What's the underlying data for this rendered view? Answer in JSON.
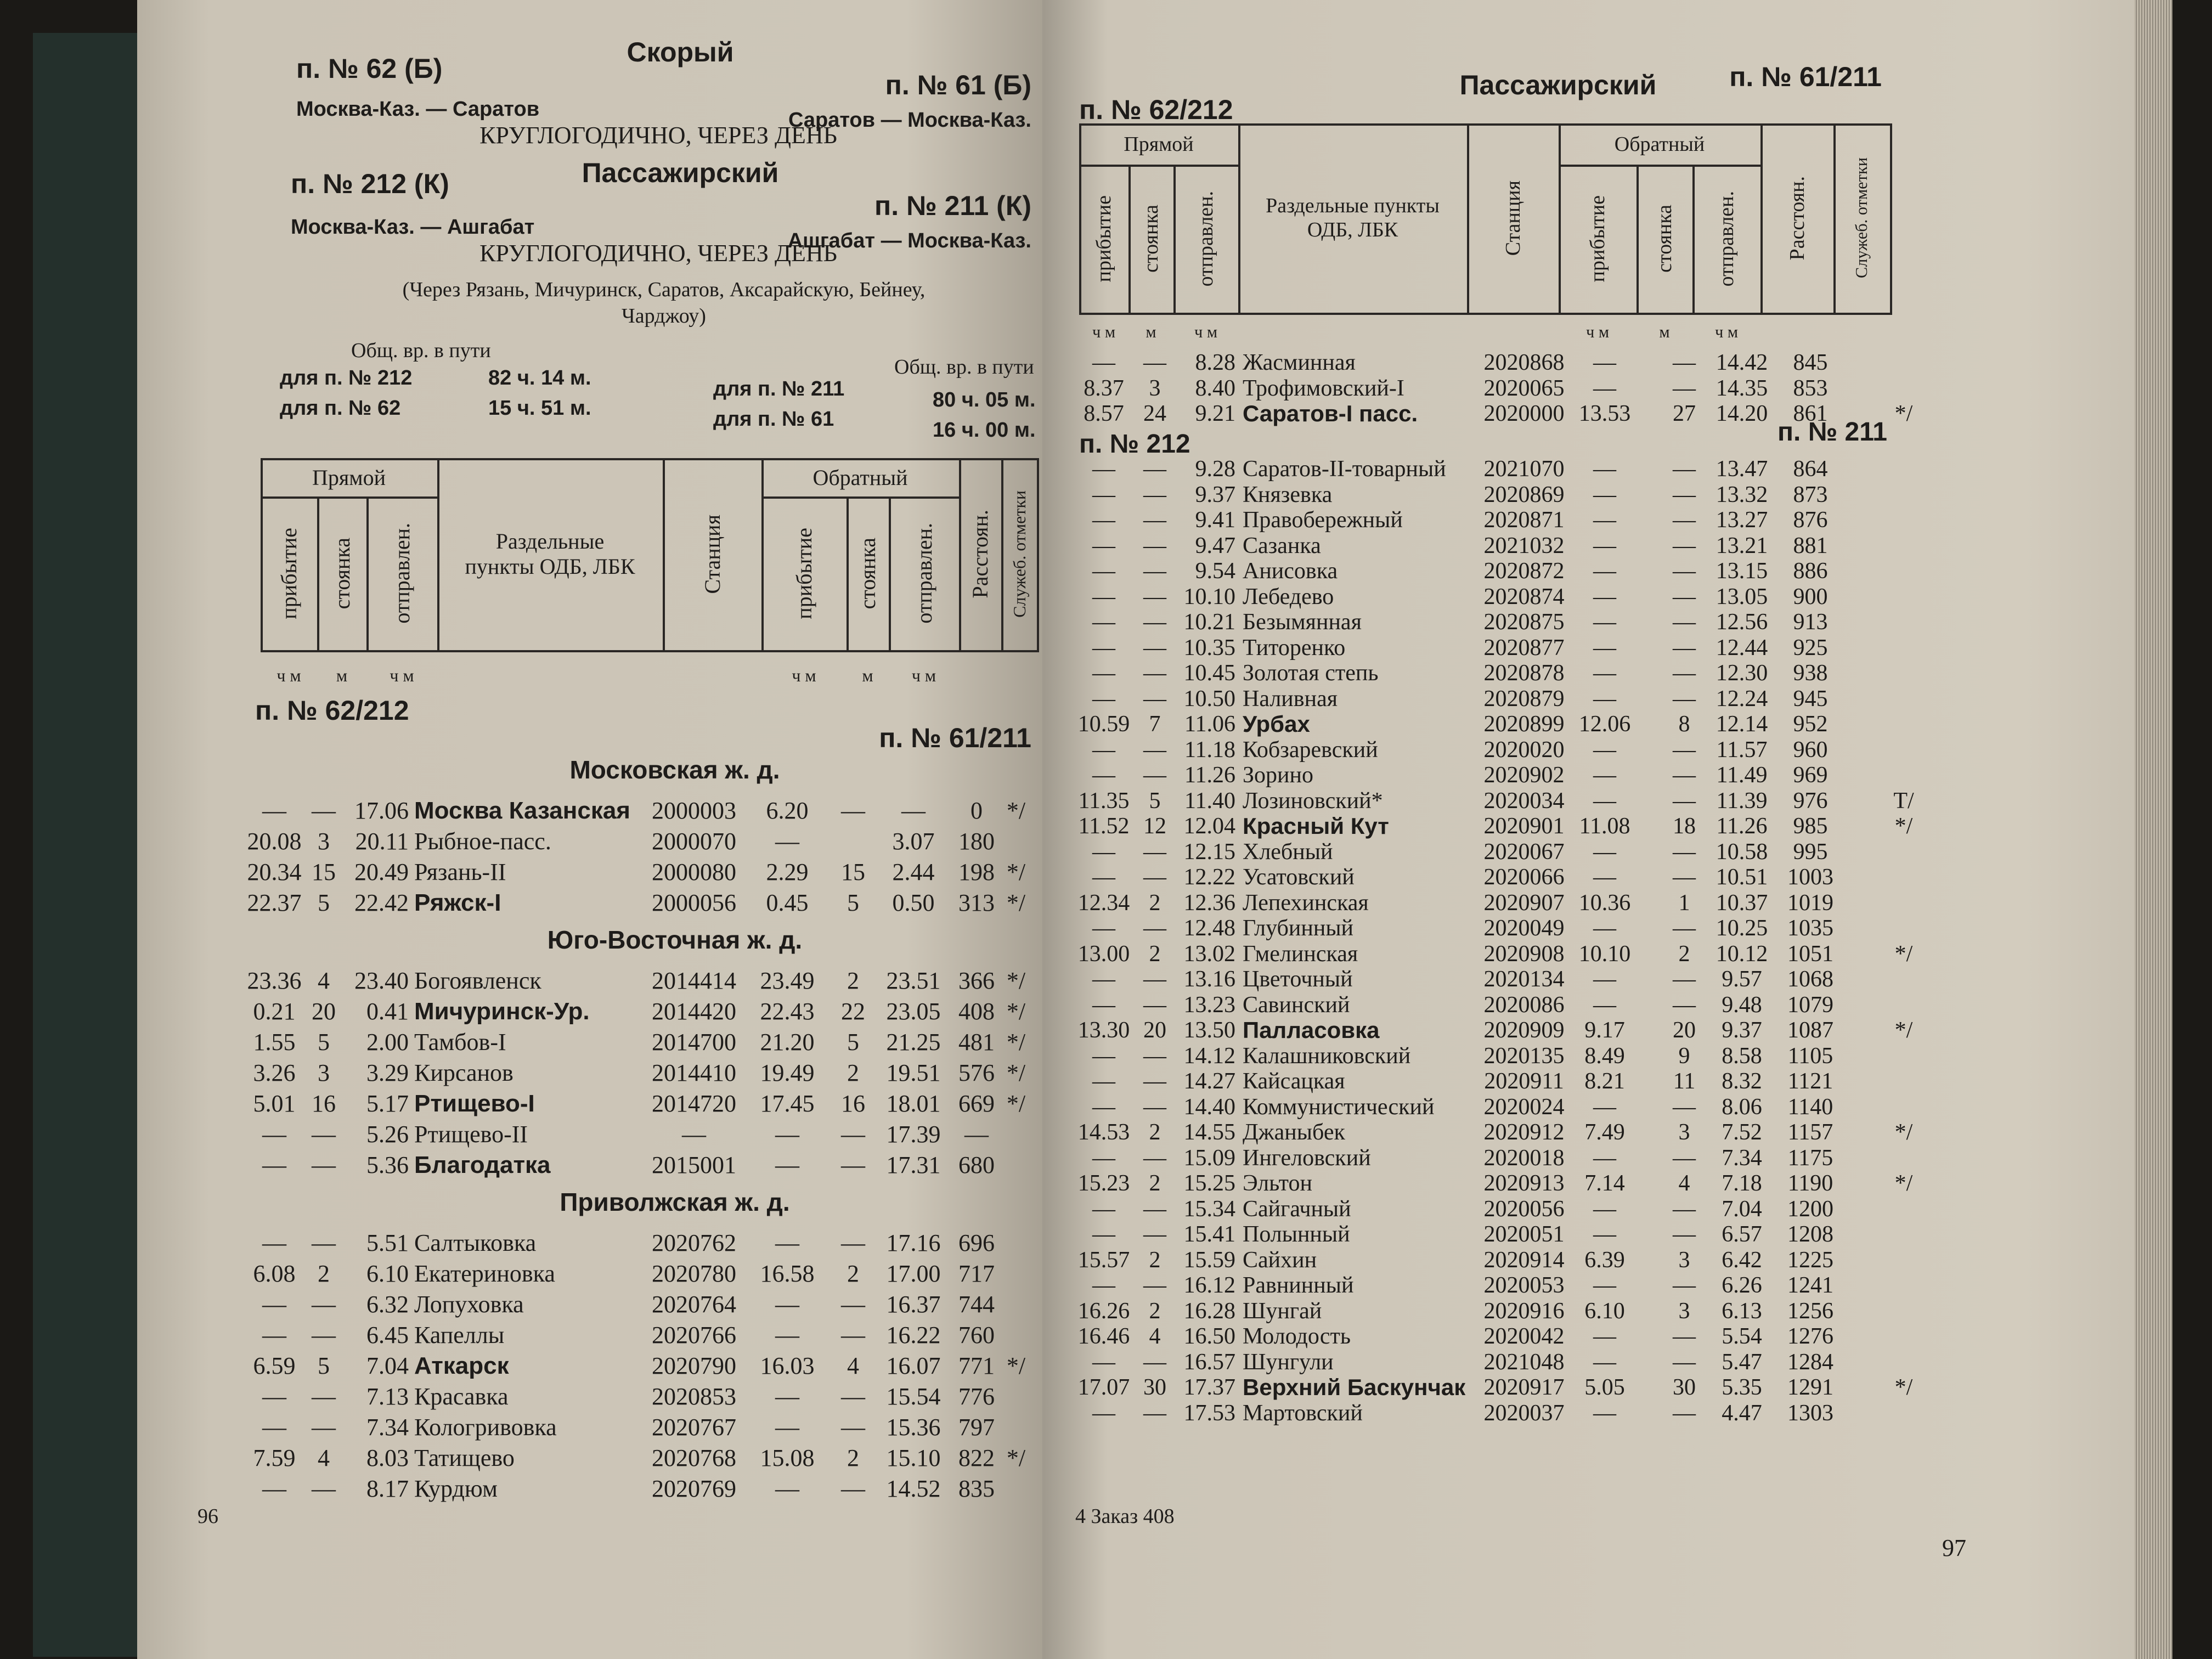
{
  "table_header": {
    "direct": "Прямой",
    "reverse": "Обратный",
    "arrival": "прибытие",
    "stop": "стоянка",
    "departure": "отправлен.",
    "points": "Раздельные пункты ОДБ, ЛБК",
    "station": "Станция",
    "distance": "Расстоян.",
    "service_notes": "Служеб. отметки",
    "unit_hm": "ч м",
    "unit_m": "м"
  },
  "left_page": {
    "header": {
      "train_fast_there": "п. № 62 (Б)",
      "category_fast": "Скорый",
      "train_fast_back": "п. № 61 (Б)",
      "route_fast_there": "Москва-Каз. — Саратов",
      "route_fast_back": "Саратов — Москва-Каз.",
      "schedule_fast": "КРУГЛОГОДИЧНО, ЧЕРЕЗ ДЕНЬ",
      "train_pass_there": "п. № 212 (К)",
      "category_pass": "Пассажирский",
      "train_pass_back": "п. № 211 (К)",
      "route_pass_there": "Москва-Каз. — Ашгабат",
      "route_pass_back": "Ашгабат — Москва-Каз.",
      "schedule_pass": "КРУГЛОГОДИЧНО, ЧЕРЕЗ ДЕНЬ",
      "via": "(Через Рязань, Мичуринск, Саратов, Аксарайскую, Бейнеу, Чарджоу)",
      "total_time_left": {
        "label": "Общ. вр. в пути",
        "rows": [
          [
            "для п. № 212",
            "82 ч. 14 м."
          ],
          [
            "для п. № 62",
            "15 ч. 51 м."
          ]
        ]
      },
      "total_time_right": {
        "label": "Общ. вр. в пути",
        "rows": [
          [
            "для п. № 211",
            "80 ч. 05 м."
          ],
          [
            "для п. № 61",
            "16 ч. 00 м."
          ]
        ]
      }
    },
    "route_left": "п. № 62/212",
    "route_right": "п. № 61/211",
    "sections": [
      {
        "title": "Московская ж. д.",
        "rows": [
          {
            "arr": "—",
            "stop": "—",
            "dep": "17.06",
            "station": "Москва Казанская",
            "bold": true,
            "code": "2000003",
            "rarr": "6.20",
            "rstop": "—",
            "rdep": "—",
            "dist": "0",
            "note": "*/"
          },
          {
            "arr": "20.08",
            "stop": "3",
            "dep": "20.11",
            "station": "Рыбное-пасс.",
            "code": "2000070",
            "rarr": "—",
            "rdep": "3.07",
            "dist": "180"
          },
          {
            "arr": "20.34",
            "stop": "15",
            "dep": "20.49",
            "station": "Рязань-II",
            "code": "2000080",
            "rarr": "2.29",
            "rstop": "15",
            "rdep": "2.44",
            "dist": "198",
            "note": "*/"
          },
          {
            "arr": "22.37",
            "stop": "5",
            "dep": "22.42",
            "station": "Ряжск-I",
            "bold": true,
            "code": "2000056",
            "rarr": "0.45",
            "rstop": "5",
            "rdep": "0.50",
            "dist": "313",
            "note": "*/"
          }
        ]
      },
      {
        "title": "Юго-Восточная ж. д.",
        "rows": [
          {
            "arr": "23.36",
            "stop": "4",
            "dep": "23.40",
            "station": "Богоявленск",
            "code": "2014414",
            "rarr": "23.49",
            "rstop": "2",
            "rdep": "23.51",
            "dist": "366",
            "note": "*/"
          },
          {
            "arr": "0.21",
            "stop": "20",
            "dep": "0.41",
            "station": "Мичуринск-Ур.",
            "bold": true,
            "code": "2014420",
            "rarr": "22.43",
            "rstop": "22",
            "rdep": "23.05",
            "dist": "408",
            "note": "*/"
          },
          {
            "arr": "1.55",
            "stop": "5",
            "dep": "2.00",
            "station": "Тамбов-I",
            "code": "2014700",
            "rarr": "21.20",
            "rstop": "5",
            "rdep": "21.25",
            "dist": "481",
            "note": "*/"
          },
          {
            "arr": "3.26",
            "stop": "3",
            "dep": "3.29",
            "station": "Кирсанов",
            "code": "2014410",
            "rarr": "19.49",
            "rstop": "2",
            "rdep": "19.51",
            "dist": "576",
            "note": "*/"
          },
          {
            "arr": "5.01",
            "stop": "16",
            "dep": "5.17",
            "station": "Ртищево-I",
            "bold": true,
            "code": "2014720",
            "rarr": "17.45",
            "rstop": "16",
            "rdep": "18.01",
            "dist": "669",
            "note": "*/"
          },
          {
            "arr": "—",
            "stop": "—",
            "dep": "5.26",
            "station": "Ртищево-II",
            "code": "—",
            "rarr": "—",
            "rstop": "—",
            "rdep": "17.39",
            "dist": "—"
          },
          {
            "arr": "—",
            "stop": "—",
            "dep": "5.36",
            "station": "Благодатка",
            "bold": true,
            "code": "2015001",
            "rarr": "—",
            "rstop": "—",
            "rdep": "17.31",
            "dist": "680"
          }
        ]
      },
      {
        "title": "Приволжская ж. д.",
        "rows": [
          {
            "arr": "—",
            "stop": "—",
            "dep": "5.51",
            "station": "Салтыковка",
            "code": "2020762",
            "rarr": "—",
            "rstop": "—",
            "rdep": "17.16",
            "dist": "696"
          },
          {
            "arr": "6.08",
            "stop": "2",
            "dep": "6.10",
            "station": "Екатериновка",
            "code": "2020780",
            "rarr": "16.58",
            "rstop": "2",
            "rdep": "17.00",
            "dist": "717"
          },
          {
            "arr": "—",
            "stop": "—",
            "dep": "6.32",
            "station": "Лопуховка",
            "code": "2020764",
            "rarr": "—",
            "rstop": "—",
            "rdep": "16.37",
            "dist": "744"
          },
          {
            "arr": "—",
            "stop": "—",
            "dep": "6.45",
            "station": "Капеллы",
            "code": "2020766",
            "rarr": "—",
            "rstop": "—",
            "rdep": "16.22",
            "dist": "760"
          },
          {
            "arr": "6.59",
            "stop": "5",
            "dep": "7.04",
            "station": "Аткарск",
            "bold": true,
            "code": "2020790",
            "rarr": "16.03",
            "rstop": "4",
            "rdep": "16.07",
            "dist": "771",
            "note": "*/"
          },
          {
            "arr": "—",
            "stop": "—",
            "dep": "7.13",
            "station": "Красавка",
            "code": "2020853",
            "rarr": "—",
            "rstop": "—",
            "rdep": "15.54",
            "dist": "776"
          },
          {
            "arr": "—",
            "stop": "—",
            "dep": "7.34",
            "station": "Кологривовка",
            "code": "2020767",
            "rarr": "—",
            "rstop": "—",
            "rdep": "15.36",
            "dist": "797"
          },
          {
            "arr": "7.59",
            "stop": "4",
            "dep": "8.03",
            "station": "Татищево",
            "code": "2020768",
            "rarr": "15.08",
            "rstop": "2",
            "rdep": "15.10",
            "dist": "822",
            "note": "*/"
          },
          {
            "arr": "—",
            "stop": "—",
            "dep": "8.17",
            "station": "Курдюм",
            "code": "2020769",
            "rarr": "—",
            "rstop": "—",
            "rdep": "14.52",
            "dist": "835"
          }
        ]
      }
    ],
    "page_number": "96"
  },
  "right_page": {
    "header": {
      "category": "Пассажирский"
    },
    "route_left": "п. № 62/212",
    "route_right": "п. № 61/211",
    "sections": [
      {
        "rows": [
          {
            "arr": "—",
            "stop": "—",
            "dep": "8.28",
            "station": "Жасминная",
            "code": "2020868",
            "rarr": "—",
            "rstop": "—",
            "rdep": "14.42",
            "dist": "845"
          },
          {
            "arr": "8.37",
            "stop": "3",
            "dep": "8.40",
            "station": "Трофимовский-I",
            "code": "2020065",
            "rarr": "—",
            "rstop": "—",
            "rdep": "14.35",
            "dist": "853"
          },
          {
            "arr": "8.57",
            "stop": "24",
            "dep": "9.21",
            "station": "Саратов-I пасс.",
            "bold": true,
            "code": "2020000",
            "rarr": "13.53",
            "rstop": "27",
            "rdep": "14.20",
            "dist": "861",
            "note": "*/"
          }
        ]
      },
      {
        "train_left": "п. № 212",
        "train_right": "п. № 211",
        "rows": [
          {
            "arr": "—",
            "stop": "—",
            "dep": "9.28",
            "station": "Саратов-II-товарный",
            "code": "2021070",
            "rarr": "—",
            "rstop": "—",
            "rdep": "13.47",
            "dist": "864"
          },
          {
            "arr": "—",
            "stop": "—",
            "dep": "9.37",
            "station": "Князевка",
            "code": "2020869",
            "rarr": "—",
            "rstop": "—",
            "rdep": "13.32",
            "dist": "873"
          },
          {
            "arr": "—",
            "stop": "—",
            "dep": "9.41",
            "station": "Правобережный",
            "code": "2020871",
            "rarr": "—",
            "rstop": "—",
            "rdep": "13.27",
            "dist": "876"
          },
          {
            "arr": "—",
            "stop": "—",
            "dep": "9.47",
            "station": "Сазанка",
            "code": "2021032",
            "rarr": "—",
            "rstop": "—",
            "rdep": "13.21",
            "dist": "881"
          },
          {
            "arr": "—",
            "stop": "—",
            "dep": "9.54",
            "station": "Анисовка",
            "code": "2020872",
            "rarr": "—",
            "rstop": "—",
            "rdep": "13.15",
            "dist": "886"
          },
          {
            "arr": "—",
            "stop": "—",
            "dep": "10.10",
            "station": "Лебедево",
            "code": "2020874",
            "rarr": "—",
            "rstop": "—",
            "rdep": "13.05",
            "dist": "900"
          },
          {
            "arr": "—",
            "stop": "—",
            "dep": "10.21",
            "station": "Безымянная",
            "code": "2020875",
            "rarr": "—",
            "rstop": "—",
            "rdep": "12.56",
            "dist": "913"
          },
          {
            "arr": "—",
            "stop": "—",
            "dep": "10.35",
            "station": "Титоренко",
            "code": "2020877",
            "rarr": "—",
            "rstop": "—",
            "rdep": "12.44",
            "dist": "925"
          },
          {
            "arr": "—",
            "stop": "—",
            "dep": "10.45",
            "station": "Золотая степь",
            "code": "2020878",
            "rarr": "—",
            "rstop": "—",
            "rdep": "12.30",
            "dist": "938"
          },
          {
            "arr": "—",
            "stop": "—",
            "dep": "10.50",
            "station": "Наливная",
            "code": "2020879",
            "rarr": "—",
            "rstop": "—",
            "rdep": "12.24",
            "dist": "945"
          },
          {
            "arr": "10.59",
            "stop": "7",
            "dep": "11.06",
            "station": "Урбах",
            "bold": true,
            "code": "2020899",
            "rarr": "12.06",
            "rstop": "8",
            "rdep": "12.14",
            "dist": "952"
          },
          {
            "arr": "—",
            "stop": "—",
            "dep": "11.18",
            "station": "Кобзаревский",
            "code": "2020020",
            "rarr": "—",
            "rstop": "—",
            "rdep": "11.57",
            "dist": "960"
          },
          {
            "arr": "—",
            "stop": "—",
            "dep": "11.26",
            "station": "Зорино",
            "code": "2020902",
            "rarr": "—",
            "rstop": "—",
            "rdep": "11.49",
            "dist": "969"
          },
          {
            "arr": "11.35",
            "stop": "5",
            "dep": "11.40",
            "station": "Лозиновский*",
            "code": "2020034",
            "rarr": "—",
            "rstop": "—",
            "rdep": "11.39",
            "dist": "976",
            "note": "Т/"
          },
          {
            "arr": "11.52",
            "stop": "12",
            "dep": "12.04",
            "station": "Красный Кут",
            "bold": true,
            "code": "2020901",
            "rarr": "11.08",
            "rstop": "18",
            "rdep": "11.26",
            "dist": "985",
            "note": "*/"
          },
          {
            "arr": "—",
            "stop": "—",
            "dep": "12.15",
            "station": "Хлебный",
            "code": "2020067",
            "rarr": "—",
            "rstop": "—",
            "rdep": "10.58",
            "dist": "995"
          },
          {
            "arr": "—",
            "stop": "—",
            "dep": "12.22",
            "station": "Усатовский",
            "code": "2020066",
            "rarr": "—",
            "rstop": "—",
            "rdep": "10.51",
            "dist": "1003"
          },
          {
            "arr": "12.34",
            "stop": "2",
            "dep": "12.36",
            "station": "Лепехинская",
            "code": "2020907",
            "rarr": "10.36",
            "rstop": "1",
            "rdep": "10.37",
            "dist": "1019"
          },
          {
            "arr": "—",
            "stop": "—",
            "dep": "12.48",
            "station": "Глубинный",
            "code": "2020049",
            "rarr": "—",
            "rstop": "—",
            "rdep": "10.25",
            "dist": "1035"
          },
          {
            "arr": "13.00",
            "stop": "2",
            "dep": "13.02",
            "station": "Гмелинская",
            "code": "2020908",
            "rarr": "10.10",
            "rstop": "2",
            "rdep": "10.12",
            "dist": "1051",
            "note": "*/"
          },
          {
            "arr": "—",
            "stop": "—",
            "dep": "13.16",
            "station": "Цветочный",
            "code": "2020134",
            "rarr": "—",
            "rstop": "—",
            "rdep": "9.57",
            "dist": "1068"
          },
          {
            "arr": "—",
            "stop": "—",
            "dep": "13.23",
            "station": "Савинский",
            "code": "2020086",
            "rarr": "—",
            "rstop": "—",
            "rdep": "9.48",
            "dist": "1079"
          },
          {
            "arr": "13.30",
            "stop": "20",
            "dep": "13.50",
            "station": "Палласовка",
            "bold": true,
            "code": "2020909",
            "rarr": "9.17",
            "rstop": "20",
            "rdep": "9.37",
            "dist": "1087",
            "note": "*/"
          },
          {
            "arr": "—",
            "stop": "—",
            "dep": "14.12",
            "station": "Калашниковский",
            "code": "2020135",
            "rarr": "8.49",
            "rstop": "9",
            "rdep": "8.58",
            "dist": "1105"
          },
          {
            "arr": "—",
            "stop": "—",
            "dep": "14.27",
            "station": "Кайсацкая",
            "code": "2020911",
            "rarr": "8.21",
            "rstop": "11",
            "rdep": "8.32",
            "dist": "1121"
          },
          {
            "arr": "—",
            "stop": "—",
            "dep": "14.40",
            "station": "Коммунистический",
            "code": "2020024",
            "rarr": "—",
            "rstop": "—",
            "rdep": "8.06",
            "dist": "1140"
          },
          {
            "arr": "14.53",
            "stop": "2",
            "dep": "14.55",
            "station": "Джаныбек",
            "code": "2020912",
            "rarr": "7.49",
            "rstop": "3",
            "rdep": "7.52",
            "dist": "1157",
            "note": "*/"
          },
          {
            "arr": "—",
            "stop": "—",
            "dep": "15.09",
            "station": "Ингеловский",
            "code": "2020018",
            "rarr": "—",
            "rstop": "—",
            "rdep": "7.34",
            "dist": "1175"
          },
          {
            "arr": "15.23",
            "stop": "2",
            "dep": "15.25",
            "station": "Эльтон",
            "code": "2020913",
            "rarr": "7.14",
            "rstop": "4",
            "rdep": "7.18",
            "dist": "1190",
            "note": "*/"
          },
          {
            "arr": "—",
            "stop": "—",
            "dep": "15.34",
            "station": "Сайгачный",
            "code": "2020056",
            "rarr": "—",
            "rstop": "—",
            "rdep": "7.04",
            "dist": "1200"
          },
          {
            "arr": "—",
            "stop": "—",
            "dep": "15.41",
            "station": "Полынный",
            "code": "2020051",
            "rarr": "—",
            "rstop": "—",
            "rdep": "6.57",
            "dist": "1208"
          },
          {
            "arr": "15.57",
            "stop": "2",
            "dep": "15.59",
            "station": "Сайхин",
            "code": "2020914",
            "rarr": "6.39",
            "rstop": "3",
            "rdep": "6.42",
            "dist": "1225"
          },
          {
            "arr": "—",
            "stop": "—",
            "dep": "16.12",
            "station": "Равнинный",
            "code": "2020053",
            "rarr": "—",
            "rstop": "—",
            "rdep": "6.26",
            "dist": "1241"
          },
          {
            "arr": "16.26",
            "stop": "2",
            "dep": "16.28",
            "station": "Шунгай",
            "code": "2020916",
            "rarr": "6.10",
            "rstop": "3",
            "rdep": "6.13",
            "dist": "1256"
          },
          {
            "arr": "16.46",
            "stop": "4",
            "dep": "16.50",
            "station": "Молодость",
            "code": "2020042",
            "rarr": "—",
            "rstop": "—",
            "rdep": "5.54",
            "dist": "1276"
          },
          {
            "arr": "—",
            "stop": "—",
            "dep": "16.57",
            "station": "Шунгули",
            "code": "2021048",
            "rarr": "—",
            "rstop": "—",
            "rdep": "5.47",
            "dist": "1284"
          },
          {
            "arr": "17.07",
            "stop": "30",
            "dep": "17.37",
            "station": "Верхний Баскунчак",
            "bold": true,
            "code": "2020917",
            "rarr": "5.05",
            "rstop": "30",
            "rdep": "5.35",
            "dist": "1291",
            "note": "*/"
          },
          {
            "arr": "—",
            "stop": "—",
            "dep": "17.53",
            "station": "Мартовский",
            "code": "2020037",
            "rarr": "—",
            "rstop": "—",
            "rdep": "4.47",
            "dist": "1303"
          }
        ]
      }
    ],
    "footer": "4 Заказ 408",
    "page_number": "97"
  }
}
